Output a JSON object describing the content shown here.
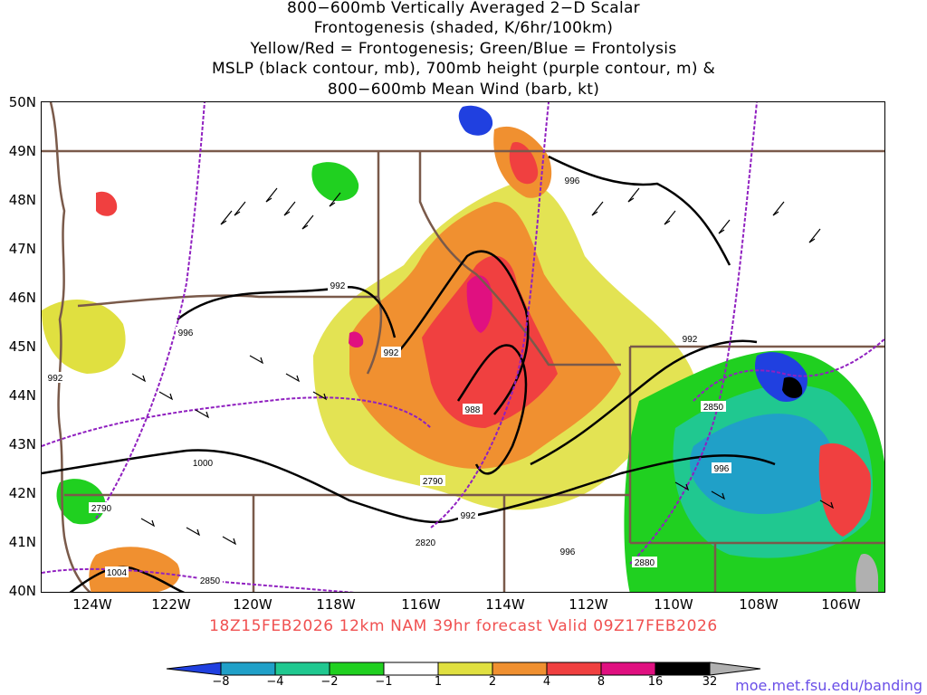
{
  "title_lines": [
    "800−600mb Vertically Averaged 2−D Scalar",
    "Frontogenesis (shaded, K/6hr/100km)",
    "Yellow/Red = Frontogenesis;  Green/Blue = Frontolysis",
    "MSLP (black contour, mb), 700mb height (purple contour, m) &",
    "800−600mb Mean Wind (barb, kt)"
  ],
  "lat_labels": [
    "50N",
    "49N",
    "48N",
    "47N",
    "46N",
    "45N",
    "44N",
    "43N",
    "42N",
    "41N",
    "40N"
  ],
  "lon_labels": [
    "124W",
    "122W",
    "120W",
    "118W",
    "116W",
    "114W",
    "112W",
    "110W",
    "108W",
    "106W"
  ],
  "footer": "18Z15FEB2026 12km NAM 39hr forecast Valid 09Z17FEB2026",
  "colorbar": {
    "labels": [
      "−8",
      "−4",
      "−2",
      "−1",
      "1",
      "2",
      "4",
      "8",
      "16",
      "32"
    ],
    "colors": [
      "#2040e0",
      "#20a0c8",
      "#20c890",
      "#20d020",
      "#ffffff",
      "#e0e040",
      "#f09030",
      "#f04040",
      "#e01080",
      "#000000",
      "#b0b0b0"
    ]
  },
  "contour_labels": {
    "mslp": [
      "992",
      "996",
      "992",
      "992",
      "988",
      "996",
      "1000",
      "992",
      "996",
      "996",
      "1004"
    ],
    "height": [
      "2850",
      "2790",
      "2790",
      "2820",
      "2880",
      "2850"
    ],
    "edge": [
      "992"
    ]
  },
  "url": "moe.met.fsu.edu/banding"
}
